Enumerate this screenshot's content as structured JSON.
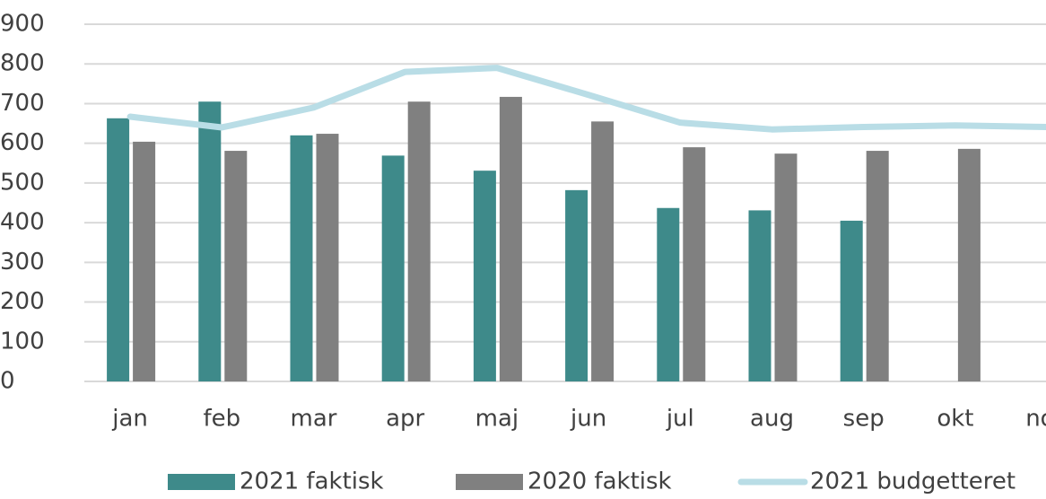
{
  "chart_data": {
    "type": "bar",
    "categories": [
      "jan",
      "feb",
      "mar",
      "apr",
      "maj",
      "jun",
      "jul",
      "aug",
      "sep",
      "okt",
      "nov"
    ],
    "series": [
      {
        "name": "2021 faktisk",
        "color": "#3e8a8a",
        "type": "bar",
        "values": [
          663,
          705,
          620,
          569,
          531,
          482,
          437,
          431,
          405,
          null,
          null
        ]
      },
      {
        "name": "2020 faktisk",
        "color": "#808080",
        "type": "bar",
        "values": [
          604,
          581,
          624,
          705,
          717,
          655,
          590,
          574,
          581,
          586,
          null
        ]
      },
      {
        "name": "2021 budgetteret",
        "color": "#b9dde6",
        "type": "line",
        "values": [
          667,
          640,
          690,
          780,
          790,
          722,
          652,
          635,
          641,
          645,
          641
        ]
      }
    ],
    "ylim": [
      0,
      900
    ],
    "yticks": [
      0,
      100,
      200,
      300,
      400,
      500,
      600,
      700,
      800,
      900
    ],
    "grid": true,
    "legend": "bottom"
  }
}
